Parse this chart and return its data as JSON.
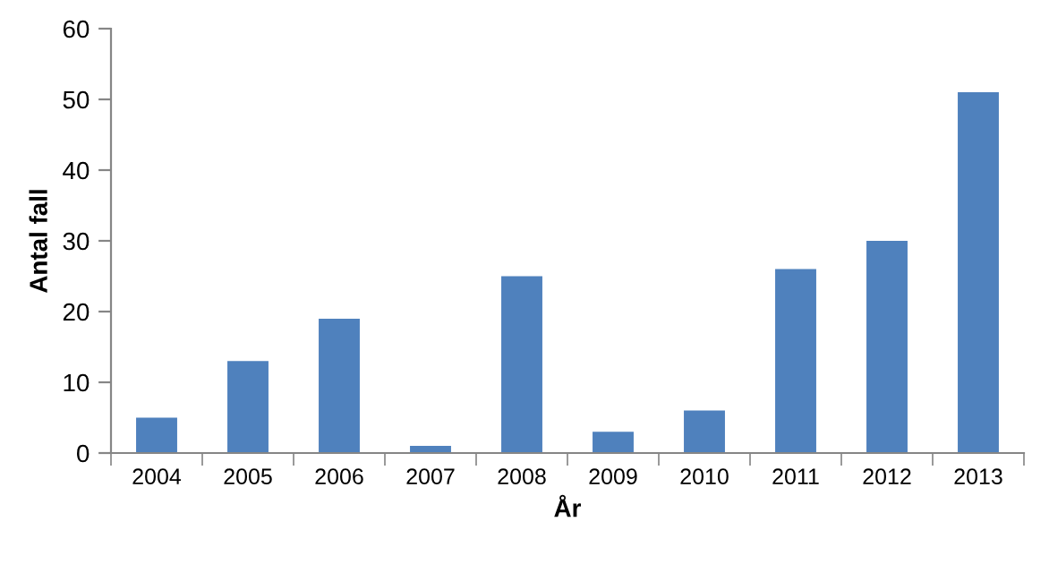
{
  "chart_data": {
    "type": "bar",
    "xlabel": "År",
    "ylabel": "Antal fall",
    "categories": [
      "2004",
      "2005",
      "2006",
      "2007",
      "2008",
      "2009",
      "2010",
      "2011",
      "2012",
      "2013"
    ],
    "values": [
      5,
      13,
      19,
      1,
      25,
      3,
      6,
      26,
      30,
      51
    ],
    "color": "#4f81bd",
    "ylim": [
      0,
      60
    ],
    "yticks": [
      0,
      10,
      20,
      30,
      40,
      50,
      60
    ],
    "grid": false,
    "legend": false
  }
}
